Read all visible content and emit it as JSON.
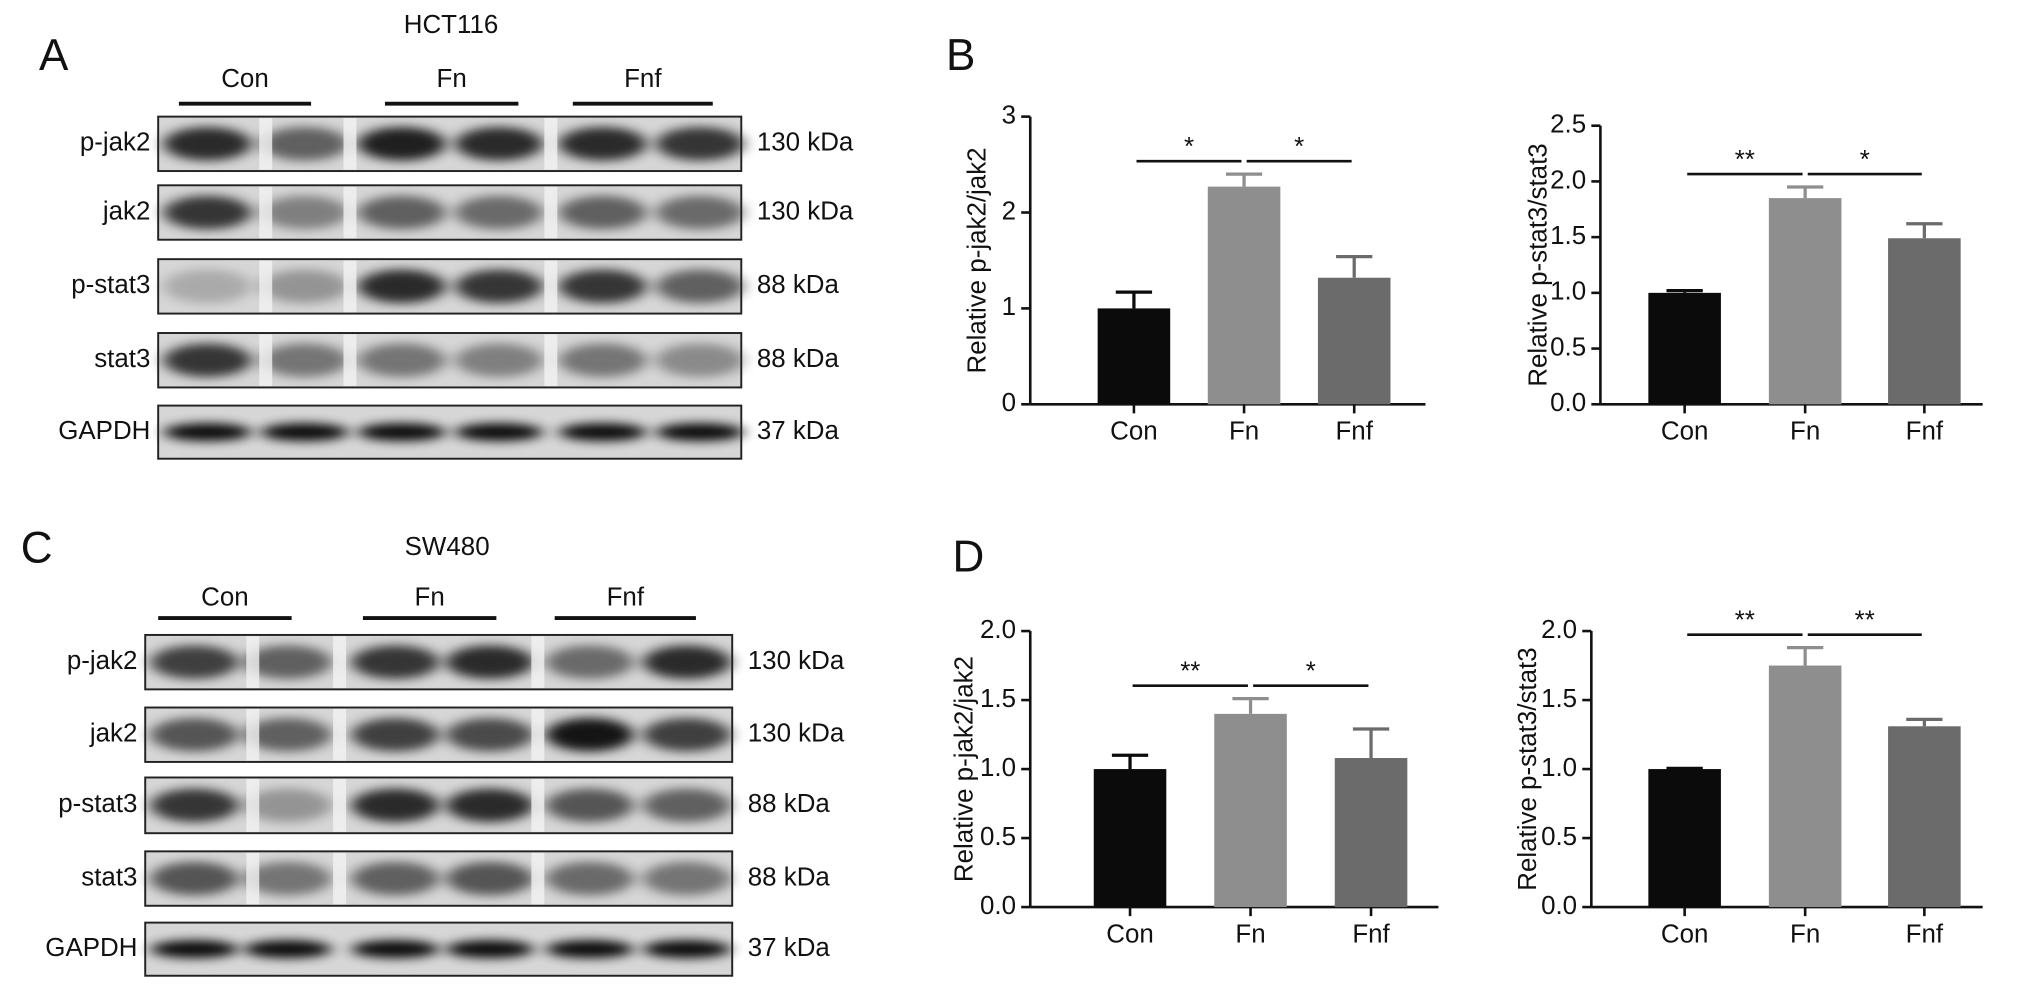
{
  "panel_labels": [
    "A",
    "B",
    "C",
    "D"
  ],
  "blots": [
    {
      "title": "HCT116",
      "groups": [
        "Con",
        "Fn",
        "Fnf"
      ],
      "rows": [
        {
          "protein": "p-jak2",
          "size": "130 kDa"
        },
        {
          "protein": "jak2",
          "size": "130 kDa"
        },
        {
          "protein": "p-stat3",
          "size": "88 kDa"
        },
        {
          "protein": "stat3",
          "size": "88 kDa"
        },
        {
          "protein": "GAPDH",
          "size": "37 kDa"
        }
      ]
    },
    {
      "title": "SW480",
      "groups": [
        "Con",
        "Fn",
        "Fnf"
      ],
      "rows": [
        {
          "protein": "p-jak2",
          "size": "130 kDa"
        },
        {
          "protein": "jak2",
          "size": "130 kDa"
        },
        {
          "protein": "p-stat3",
          "size": "88 kDa"
        },
        {
          "protein": "stat3",
          "size": "88 kDa"
        },
        {
          "protein": "GAPDH",
          "size": "37 kDa"
        }
      ]
    }
  ],
  "chart_data": [
    {
      "type": "bar",
      "y_label": "Relative p-jak2/jak2",
      "categories": [
        "Con",
        "Fn",
        "Fnf"
      ],
      "values": [
        1.0,
        2.27,
        1.32
      ],
      "errors": [
        0.17,
        0.13,
        0.22
      ],
      "colors": [
        "#0b0b0b",
        "#8e8e8e",
        "#6b6b6b"
      ],
      "ylim": [
        0,
        3
      ],
      "yticks": [
        0,
        1,
        2,
        3
      ],
      "annotations": [
        {
          "text": "*",
          "between": [
            "Con",
            "Fn"
          ]
        },
        {
          "text": "*",
          "between": [
            "Fn",
            "Fnf"
          ]
        }
      ]
    },
    {
      "type": "bar",
      "y_label": "Relative p-stat3/stat3",
      "categories": [
        "Con",
        "Fn",
        "Fnf"
      ],
      "values": [
        1.0,
        1.85,
        1.49
      ],
      "errors": [
        0.02,
        0.1,
        0.13
      ],
      "colors": [
        "#0b0b0b",
        "#8e8e8e",
        "#6b6b6b"
      ],
      "ylim": [
        0,
        2.5
      ],
      "yticks": [
        {
          "value": 0,
          "label": "0.0"
        },
        0.5,
        {
          "value": 1,
          "label": "1.0"
        },
        1.5,
        {
          "value": 2,
          "label": "2.0"
        },
        2.5
      ],
      "annotations": [
        {
          "text": "**",
          "between": [
            "Con",
            "Fn"
          ]
        },
        {
          "text": "*",
          "between": [
            "Fn",
            "Fnf"
          ]
        }
      ]
    },
    {
      "type": "bar",
      "y_label": "Relative p-jak2/jak2",
      "categories": [
        "Con",
        "Fn",
        "Fnf"
      ],
      "values": [
        1.0,
        1.4,
        1.08
      ],
      "errors": [
        0.1,
        0.11,
        0.21
      ],
      "colors": [
        "#0b0b0b",
        "#8e8e8e",
        "#6b6b6b"
      ],
      "ylim": [
        0,
        2
      ],
      "yticks": [
        {
          "value": 0,
          "label": "0.0"
        },
        0.5,
        {
          "value": 1,
          "label": "1.0"
        },
        1.5,
        {
          "value": 2,
          "label": "2.0"
        }
      ],
      "annotations": [
        {
          "text": "**",
          "between": [
            "Con",
            "Fn"
          ]
        },
        {
          "text": "*",
          "between": [
            "Fn",
            "Fnf"
          ]
        }
      ]
    },
    {
      "type": "bar",
      "y_label": "Relative p-stat3/stat3",
      "categories": [
        "Con",
        "Fn",
        "Fnf"
      ],
      "values": [
        1.0,
        1.75,
        1.31
      ],
      "errors": [
        0.005,
        0.13,
        0.05
      ],
      "colors": [
        "#0b0b0b",
        "#8e8e8e",
        "#6b6b6b"
      ],
      "ylim": [
        0,
        2
      ],
      "yticks": [
        {
          "value": 0,
          "label": "0.0"
        },
        0.5,
        {
          "value": 1,
          "label": "1.0"
        },
        1.5,
        {
          "value": 2,
          "label": "2.0"
        }
      ],
      "annotations": [
        {
          "text": "**",
          "between": [
            "Con",
            "Fn"
          ]
        },
        {
          "text": "**",
          "between": [
            "Fn",
            "Fnf"
          ]
        }
      ]
    }
  ]
}
